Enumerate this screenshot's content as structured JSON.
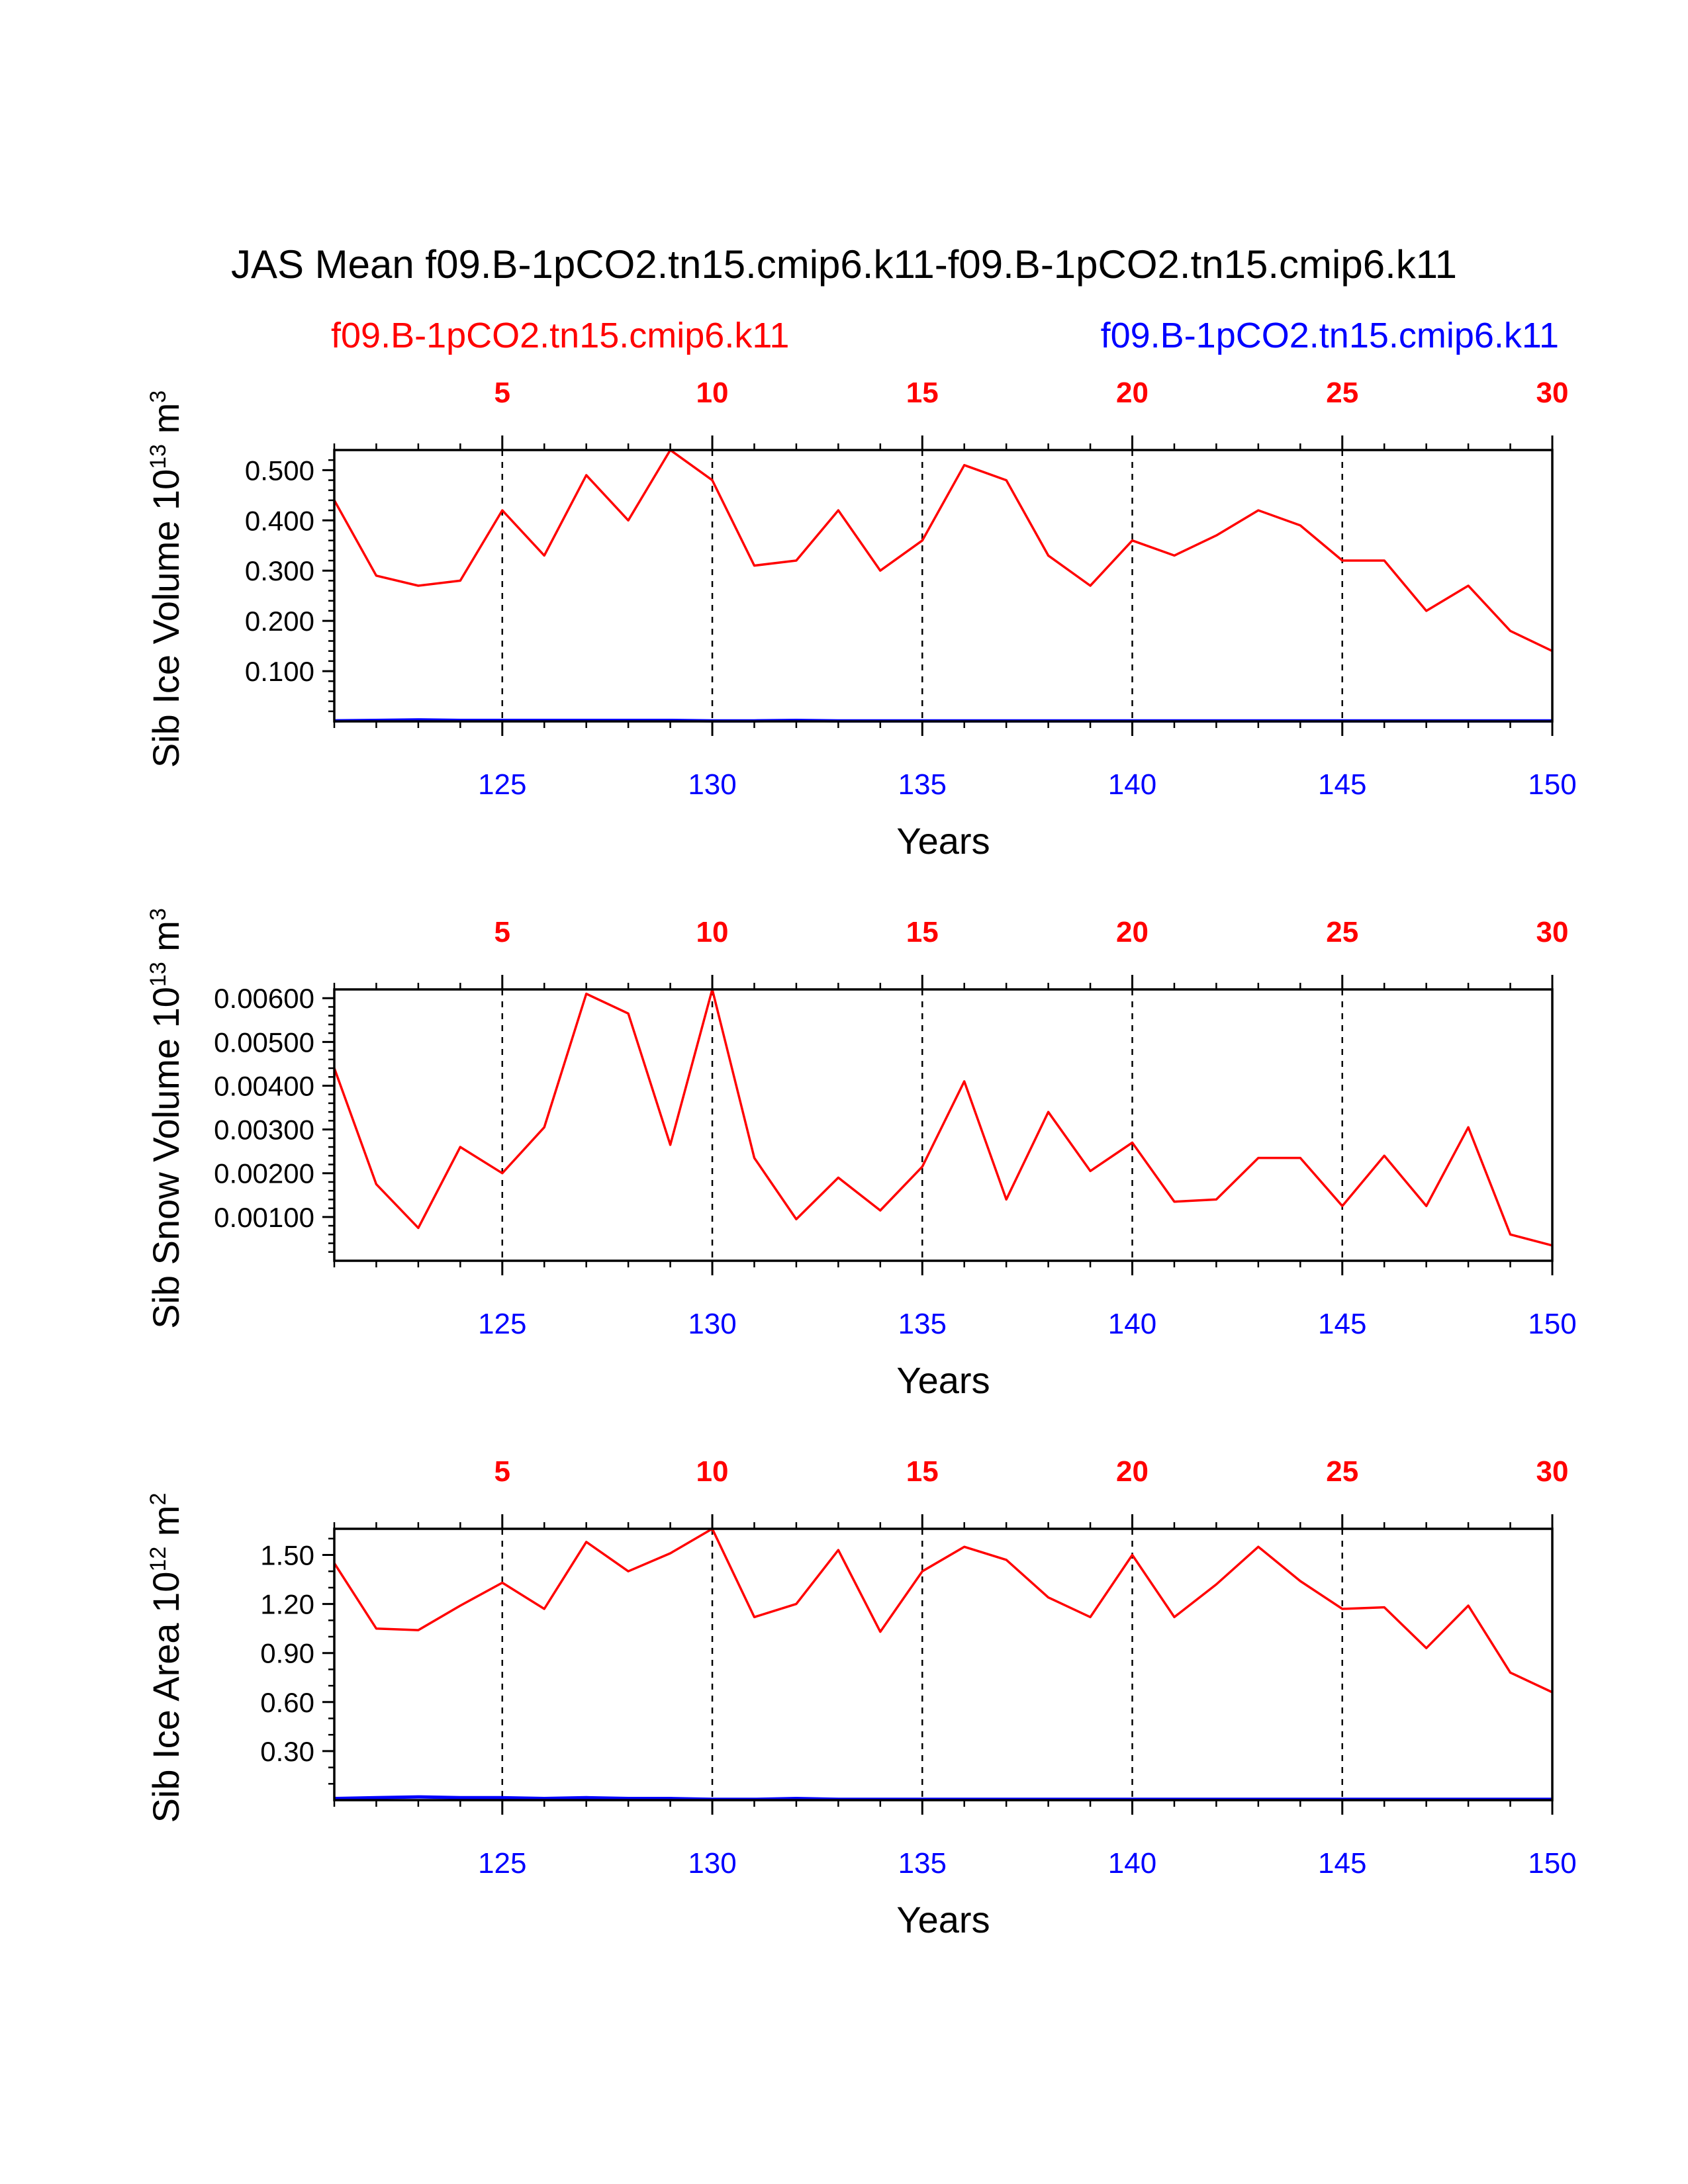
{
  "figure": {
    "title": "JAS Mean f09.B-1pCO2.tn15.cmip6.k11-f09.B-1pCO2.tn15.cmip6.k11",
    "left_label": "f09.B-1pCO2.tn15.cmip6.k11",
    "right_label": "f09.B-1pCO2.tn15.cmip6.k11",
    "colors": {
      "case1": "#ff0000",
      "case2": "#0000ff",
      "axis": "#000000"
    }
  },
  "chart_data": [
    {
      "type": "line",
      "ylabel": "Sib Ice Volume 10",
      "ylabel_exp": "13",
      "ylabel_unit": " m",
      "ylabel_unit_exp": "3",
      "xlabel": "Years",
      "xlim": [
        121,
        150
      ],
      "ylim": [
        0,
        0.54
      ],
      "yticks": [
        0.1,
        0.2,
        0.3,
        0.4,
        0.5
      ],
      "ytick_labels": [
        "0.100",
        "0.200",
        "0.300",
        "0.400",
        "0.500"
      ],
      "yminor_step": 0.02,
      "xticks": [
        125,
        130,
        135,
        140,
        145,
        150
      ],
      "xtick_labels": [
        "125",
        "130",
        "135",
        "140",
        "145",
        "150"
      ],
      "top_xticks": [
        125,
        130,
        135,
        140,
        145,
        150
      ],
      "top_xtick_labels": [
        "5",
        "10",
        "15",
        "20",
        "25",
        "30"
      ],
      "x": [
        121,
        122,
        123,
        124,
        125,
        126,
        127,
        128,
        129,
        130,
        131,
        132,
        133,
        134,
        135,
        136,
        137,
        138,
        139,
        140,
        141,
        142,
        143,
        144,
        145,
        146,
        147,
        148,
        149,
        150
      ],
      "series": [
        {
          "name": "f09.B-1pCO2.tn15.cmip6.k11",
          "color": "#ff0000",
          "values": [
            0.44,
            0.29,
            0.27,
            0.28,
            0.42,
            0.33,
            0.49,
            0.4,
            0.54,
            0.48,
            0.31,
            0.32,
            0.42,
            0.3,
            0.36,
            0.51,
            0.48,
            0.33,
            0.27,
            0.36,
            0.33,
            0.37,
            0.42,
            0.39,
            0.32,
            0.32,
            0.22,
            0.27,
            0.18,
            0.14
          ]
        },
        {
          "name": "f09.B-1pCO2.tn15.cmip6.k11",
          "color": "#0000ff",
          "values": [
            0.001,
            0.002,
            0.003,
            0.002,
            0.002,
            0.002,
            0.002,
            0.002,
            0.002,
            0.001,
            0.001,
            0.002,
            0.001,
            0.001,
            0.001,
            0.001,
            0.001,
            0.001,
            0.001,
            0.001,
            0.001,
            0.001,
            0.001,
            0.001,
            0.001,
            0.001,
            0.001,
            0.001,
            0.001,
            0.001
          ]
        }
      ]
    },
    {
      "type": "line",
      "ylabel": "Sib Snow Volume 10",
      "ylabel_exp": "13",
      "ylabel_unit": " m",
      "ylabel_unit_exp": "3",
      "xlabel": "Years",
      "xlim": [
        121,
        150
      ],
      "ylim": [
        0,
        0.0062
      ],
      "yticks": [
        0.001,
        0.002,
        0.003,
        0.004,
        0.005,
        0.006
      ],
      "ytick_labels": [
        "0.00100",
        "0.00200",
        "0.00300",
        "0.00400",
        "0.00500",
        "0.00600"
      ],
      "yminor_step": 0.0002,
      "xticks": [
        125,
        130,
        135,
        140,
        145,
        150
      ],
      "xtick_labels": [
        "125",
        "130",
        "135",
        "140",
        "145",
        "150"
      ],
      "top_xticks": [
        125,
        130,
        135,
        140,
        145,
        150
      ],
      "top_xtick_labels": [
        "5",
        "10",
        "15",
        "20",
        "25",
        "30"
      ],
      "x": [
        121,
        122,
        123,
        124,
        125,
        126,
        127,
        128,
        129,
        130,
        131,
        132,
        133,
        134,
        135,
        136,
        137,
        138,
        139,
        140,
        141,
        142,
        143,
        144,
        145,
        146,
        147,
        148,
        149,
        150
      ],
      "series": [
        {
          "name": "f09.B-1pCO2.tn15.cmip6.k11",
          "color": "#ff0000",
          "values": [
            0.0044,
            0.00175,
            0.00075,
            0.0026,
            0.002,
            0.00305,
            0.0061,
            0.00565,
            0.00265,
            0.0062,
            0.00235,
            0.00095,
            0.0019,
            0.00115,
            0.00215,
            0.0041,
            0.0014,
            0.0034,
            0.00205,
            0.0027,
            0.00135,
            0.0014,
            0.00235,
            0.00235,
            0.00125,
            0.0024,
            0.00125,
            0.00305,
            0.0006,
            0.00035
          ]
        }
      ]
    },
    {
      "type": "line",
      "ylabel": "Sib Ice Area 10",
      "ylabel_exp": "12",
      "ylabel_unit": " m",
      "ylabel_unit_exp": "2",
      "xlabel": "Years",
      "xlim": [
        121,
        150
      ],
      "ylim": [
        0,
        1.66
      ],
      "yticks": [
        0.3,
        0.6,
        0.9,
        1.2,
        1.5
      ],
      "ytick_labels": [
        "0.30",
        "0.60",
        "0.90",
        "1.20",
        "1.50"
      ],
      "yminor_step": 0.1,
      "xticks": [
        125,
        130,
        135,
        140,
        145,
        150
      ],
      "xtick_labels": [
        "125",
        "130",
        "135",
        "140",
        "145",
        "150"
      ],
      "top_xticks": [
        125,
        130,
        135,
        140,
        145,
        150
      ],
      "top_xtick_labels": [
        "5",
        "10",
        "15",
        "20",
        "25",
        "30"
      ],
      "x": [
        121,
        122,
        123,
        124,
        125,
        126,
        127,
        128,
        129,
        130,
        131,
        132,
        133,
        134,
        135,
        136,
        137,
        138,
        139,
        140,
        141,
        142,
        143,
        144,
        145,
        146,
        147,
        148,
        149,
        150
      ],
      "series": [
        {
          "name": "f09.B-1pCO2.tn15.cmip6.k11",
          "color": "#ff0000",
          "values": [
            1.45,
            1.05,
            1.04,
            1.19,
            1.33,
            1.17,
            1.58,
            1.4,
            1.51,
            1.66,
            1.12,
            1.2,
            1.53,
            1.03,
            1.4,
            1.55,
            1.47,
            1.24,
            1.12,
            1.5,
            1.12,
            1.32,
            1.55,
            1.34,
            1.17,
            1.18,
            0.93,
            1.19,
            0.78,
            0.66
          ]
        },
        {
          "name": "f09.B-1pCO2.tn15.cmip6.k11",
          "color": "#0000ff",
          "values": [
            0.01,
            0.015,
            0.02,
            0.015,
            0.015,
            0.01,
            0.015,
            0.01,
            0.01,
            0.005,
            0.005,
            0.01,
            0.005,
            0.005,
            0.005,
            0.005,
            0.005,
            0.005,
            0.005,
            0.005,
            0.005,
            0.005,
            0.005,
            0.005,
            0.005,
            0.005,
            0.005,
            0.005,
            0.005,
            0.005
          ]
        }
      ]
    }
  ]
}
